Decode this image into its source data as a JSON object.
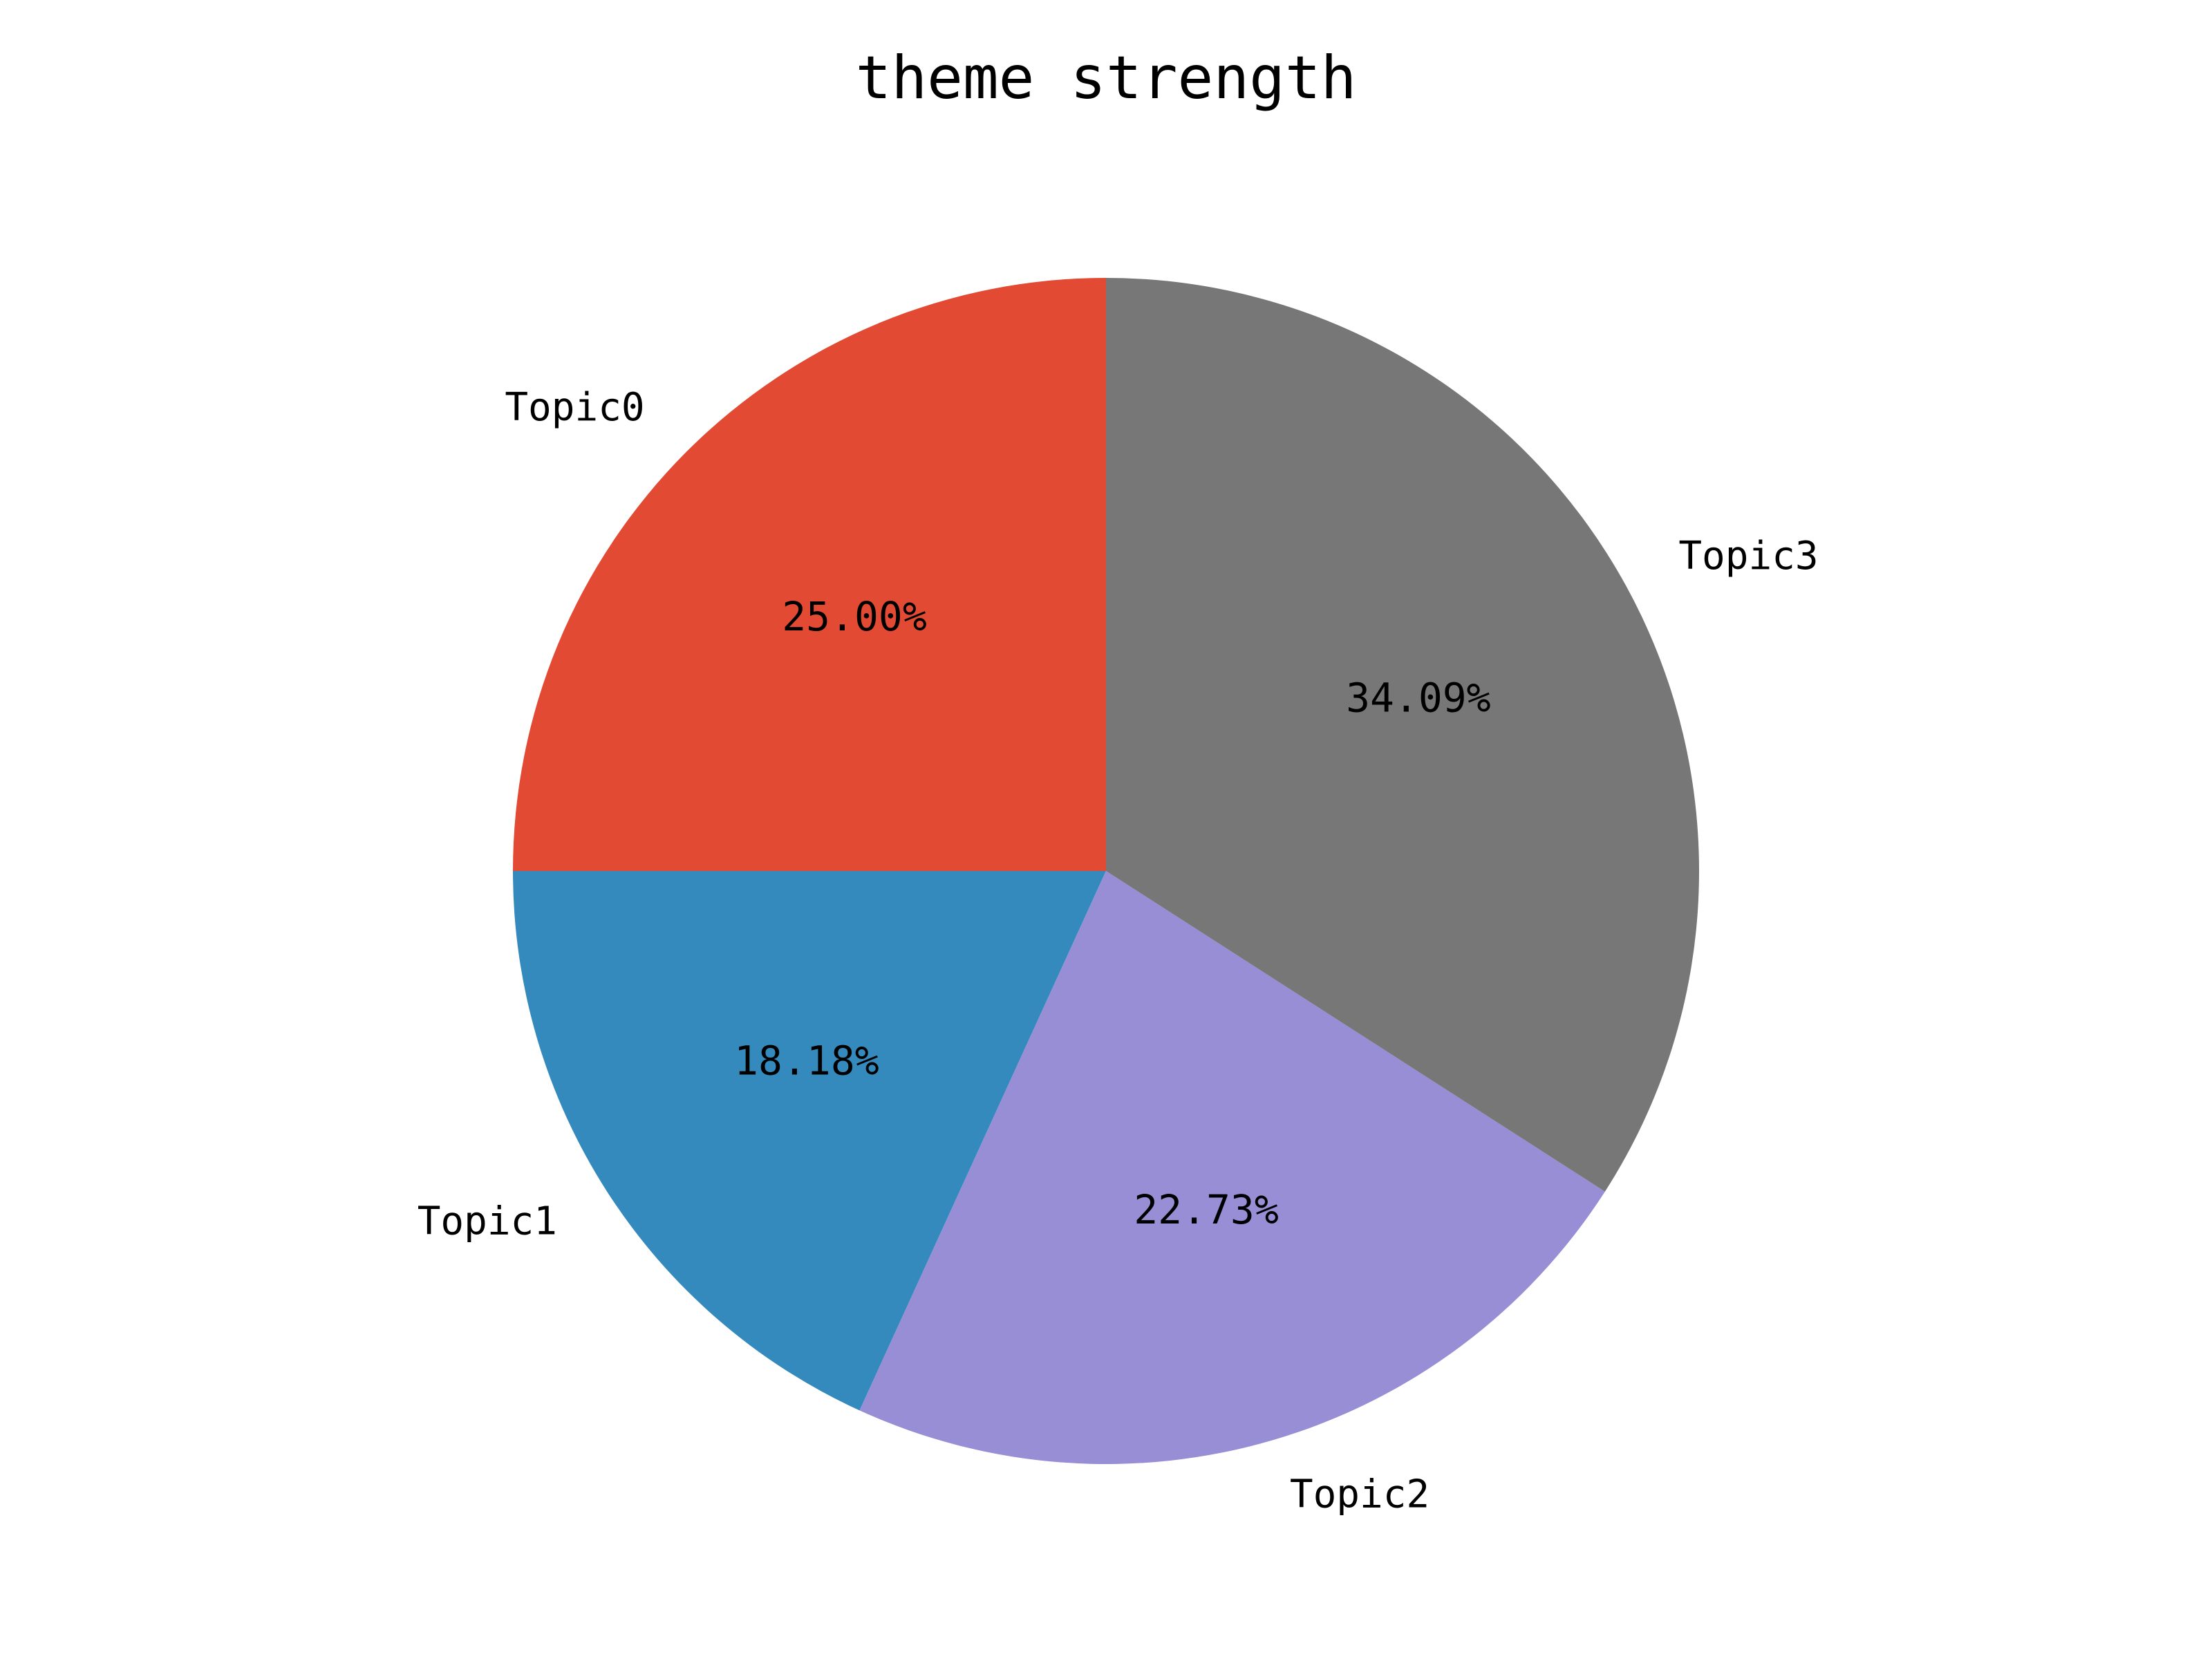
{
  "chart_data": {
    "type": "pie",
    "title": "theme strength",
    "categories": [
      "Topic0",
      "Topic1",
      "Topic2",
      "Topic3"
    ],
    "values": [
      25.0,
      18.18,
      22.73,
      34.09
    ],
    "value_labels": [
      "25.00%",
      "18.18%",
      "22.73%",
      "34.09%"
    ],
    "colors": [
      "#E24A33",
      "#348ABD",
      "#988ED5",
      "#777777"
    ],
    "start_angle_deg": 90,
    "direction": "counterclockwise",
    "legend": "none"
  }
}
